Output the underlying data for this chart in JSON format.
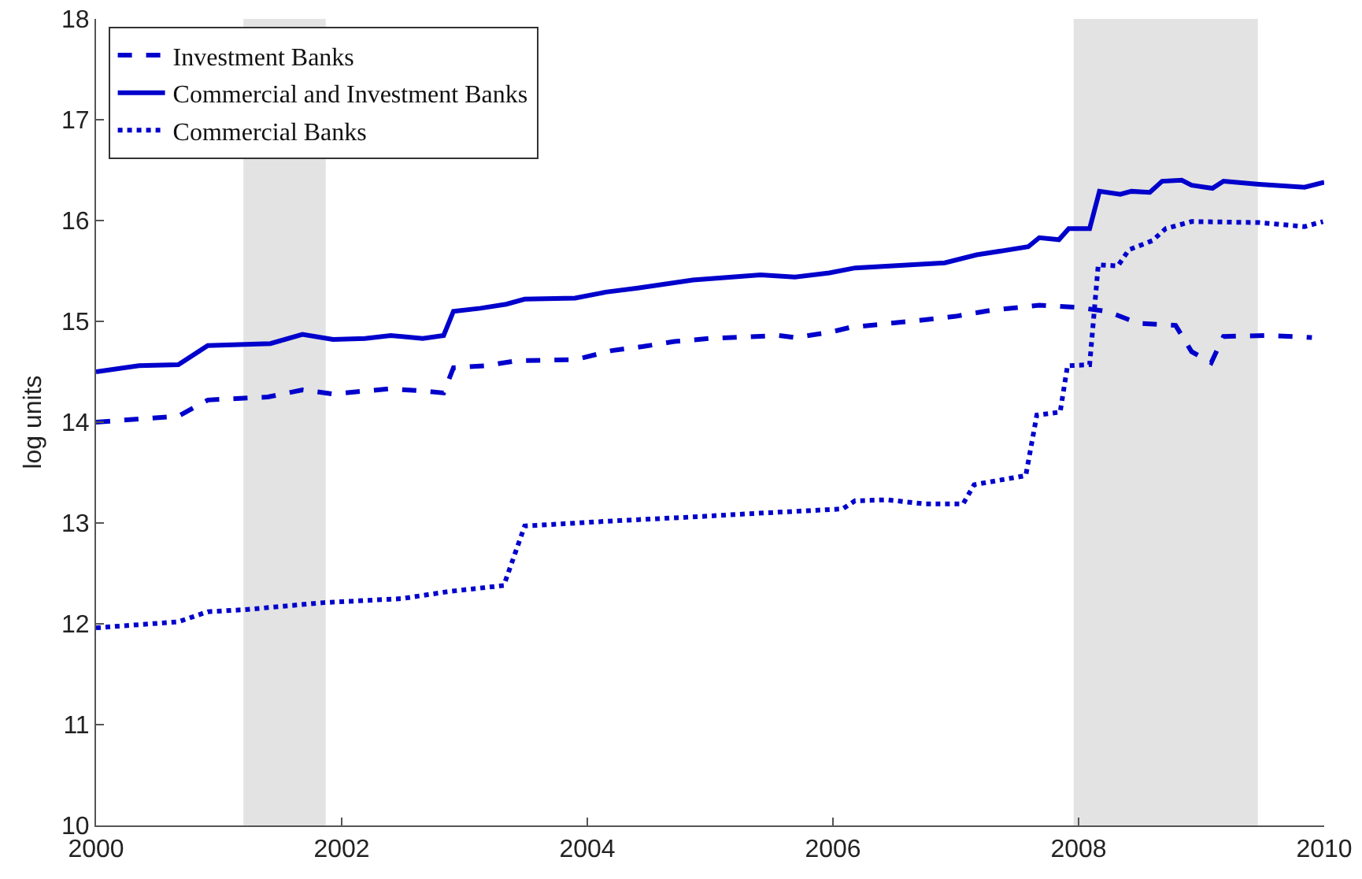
{
  "chart_data": {
    "type": "line",
    "ylabel": "log units",
    "xlim": [
      2000,
      2010
    ],
    "xticks": [
      2000,
      2002,
      2004,
      2006,
      2008,
      2010
    ],
    "ylim": [
      10,
      18
    ],
    "yticks": [
      10,
      11,
      12,
      13,
      14,
      15,
      16,
      17,
      18
    ],
    "grid": false,
    "legend": "top left",
    "marker": "none",
    "bands": [
      {
        "axis": "x",
        "from": 2001.2,
        "to": 2001.87,
        "color": "#e3e3e3"
      },
      {
        "axis": "x",
        "from": 2007.96,
        "to": 2009.46,
        "color": "#e3e3e3"
      }
    ],
    "series": [
      {
        "name": "Investment Banks",
        "color": "#0000cc",
        "line_style": "dashed",
        "x": [
          2000,
          2000.67,
          2000.91,
          2001.4,
          2001.68,
          2001.93,
          2002.38,
          2002.66,
          2002.83,
          2002.91,
          2003.17,
          2003.43,
          2003.9,
          2004.2,
          2004.45,
          2004.71,
          2004.99,
          2005.56,
          2005.69,
          2005.97,
          2006.14,
          2006.7,
          2007.0,
          2007.29,
          2007.68,
          2007.98,
          2008.23,
          2008.49,
          2008.79,
          2008.92,
          2009.08,
          2009.18,
          2009.56,
          2009.9
        ],
        "values": [
          14.0,
          14.06,
          14.22,
          14.25,
          14.32,
          14.28,
          14.33,
          14.31,
          14.29,
          14.54,
          14.56,
          14.61,
          14.62,
          14.71,
          14.75,
          14.8,
          14.83,
          14.86,
          14.84,
          14.89,
          14.94,
          15.01,
          15.05,
          15.11,
          15.16,
          15.14,
          15.1,
          14.98,
          14.96,
          14.7,
          14.59,
          14.85,
          14.86,
          14.84
        ]
      },
      {
        "name": "Commercial and Investment Banks",
        "color": "#0000cc",
        "line_style": "solid",
        "x": [
          2000,
          2000.35,
          2000.67,
          2000.91,
          2001.42,
          2001.68,
          2001.93,
          2002.19,
          2002.4,
          2002.66,
          2002.83,
          2002.91,
          2003.13,
          2003.34,
          2003.49,
          2003.9,
          2004.15,
          2004.41,
          2004.86,
          2005.41,
          2005.69,
          2005.97,
          2006.18,
          2006.91,
          2007.17,
          2007.59,
          2007.68,
          2007.84,
          2007.92,
          2008.09,
          2008.17,
          2008.34,
          2008.43,
          2008.58,
          2008.68,
          2008.84,
          2008.92,
          2009.09,
          2009.18,
          2009.47,
          2009.84,
          2010
        ],
        "values": [
          14.5,
          14.56,
          14.57,
          14.76,
          14.78,
          14.87,
          14.82,
          14.83,
          14.86,
          14.83,
          14.86,
          15.1,
          15.13,
          15.17,
          15.22,
          15.23,
          15.29,
          15.33,
          15.41,
          15.46,
          15.44,
          15.48,
          15.53,
          15.58,
          15.66,
          15.74,
          15.83,
          15.81,
          15.92,
          15.92,
          16.29,
          16.26,
          16.29,
          16.28,
          16.39,
          16.4,
          16.35,
          16.32,
          16.39,
          16.36,
          16.33,
          16.38
        ]
      },
      {
        "name": "Commercial Banks",
        "color": "#0000cc",
        "line_style": "dotted",
        "x": [
          2000,
          2000.67,
          2000.91,
          2001.21,
          2001.85,
          2002.49,
          2002.87,
          2003.32,
          2003.49,
          2004.2,
          2004.86,
          2005.29,
          2006.08,
          2006.18,
          2006.44,
          2006.74,
          2007.06,
          2007.15,
          2007.57,
          2007.66,
          2007.85,
          2007.91,
          2008.09,
          2008.16,
          2008.32,
          2008.41,
          2008.6,
          2008.71,
          2008.92,
          2009.47,
          2009.84,
          2009.99
        ],
        "values": [
          11.96,
          12.02,
          12.12,
          12.14,
          12.21,
          12.25,
          12.32,
          12.38,
          12.97,
          13.02,
          13.06,
          13.09,
          13.14,
          13.22,
          13.23,
          13.19,
          13.19,
          13.38,
          13.47,
          14.07,
          14.1,
          14.56,
          14.57,
          15.56,
          15.55,
          15.71,
          15.8,
          15.92,
          15.99,
          15.98,
          15.94,
          15.99
        ]
      }
    ]
  }
}
